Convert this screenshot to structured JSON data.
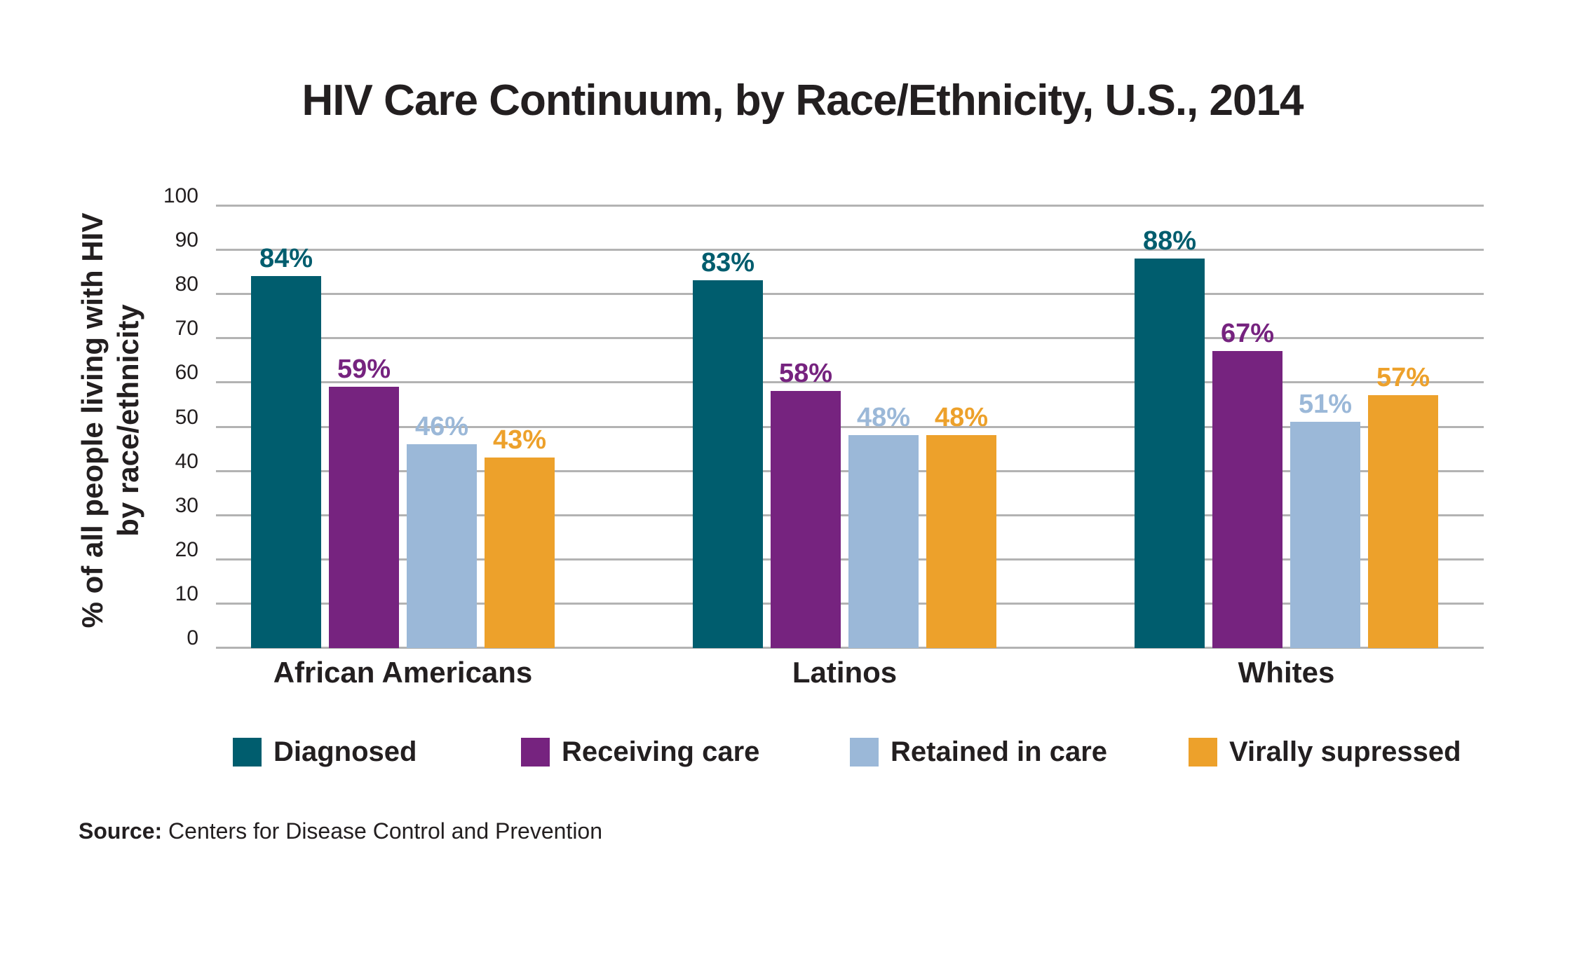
{
  "title": "HIV Care Continuum, by Race/Ethnicity, U.S., 2014",
  "source": {
    "label": "Source:",
    "text": " Centers for Disease Control and Prevention"
  },
  "chart_data": {
    "type": "bar",
    "title": "HIV Care Continuum, by Race/Ethnicity, U.S., 2014",
    "categories": [
      "African Americans",
      "Latinos",
      "Whites"
    ],
    "series": [
      {
        "name": "Diagnosed",
        "color": "#005D6E",
        "values": [
          84,
          83,
          88
        ]
      },
      {
        "name": "Receiving care",
        "color": "#76237F",
        "values": [
          59,
          58,
          67
        ]
      },
      {
        "name": "Retained in care",
        "color": "#9BB8D8",
        "values": [
          46,
          48,
          51
        ]
      },
      {
        "name": "Virally supressed",
        "color": "#EDA12B",
        "values": [
          43,
          48,
          57
        ]
      }
    ],
    "value_suffix": "%",
    "ylabel_lines": [
      "% of all people living with HIV",
      "by race/ethnicity"
    ],
    "ylim": [
      0,
      100
    ],
    "yticks": [
      0,
      10,
      20,
      30,
      40,
      50,
      60,
      70,
      80,
      90,
      100
    ],
    "grid": true,
    "legend_position": "bottom",
    "grid_color": "#B3B3B3",
    "text_color": "#231F20"
  }
}
